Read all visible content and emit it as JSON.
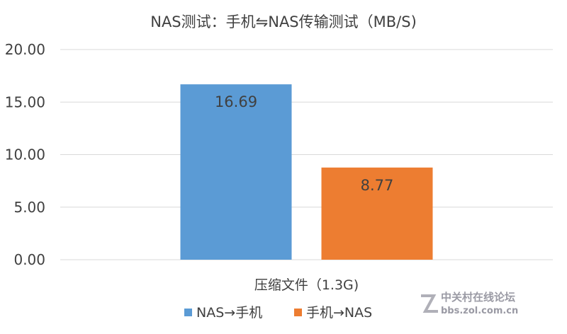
{
  "chart_data": {
    "type": "bar",
    "title": "NAS测试：手机⇋NAS传输测试（MB/S)",
    "categories": [
      "压缩文件（1.3G)"
    ],
    "series": [
      {
        "name": "NAS→手机",
        "values": [
          16.69
        ],
        "color": "#5B9BD5"
      },
      {
        "name": "手机→NAS",
        "values": [
          8.77
        ],
        "color": "#ED7D31"
      }
    ],
    "data_labels": [
      "16.69",
      "8.77"
    ],
    "y_ticks": [
      "0.00",
      "5.00",
      "10.00",
      "15.00",
      "20.00"
    ],
    "ylim": [
      0,
      20
    ],
    "grid": true,
    "legend_position": "bottom",
    "xlabel": "",
    "ylabel": ""
  },
  "watermark": {
    "text": "中关村在线论坛",
    "url": "bbs.zol.com.cn"
  }
}
